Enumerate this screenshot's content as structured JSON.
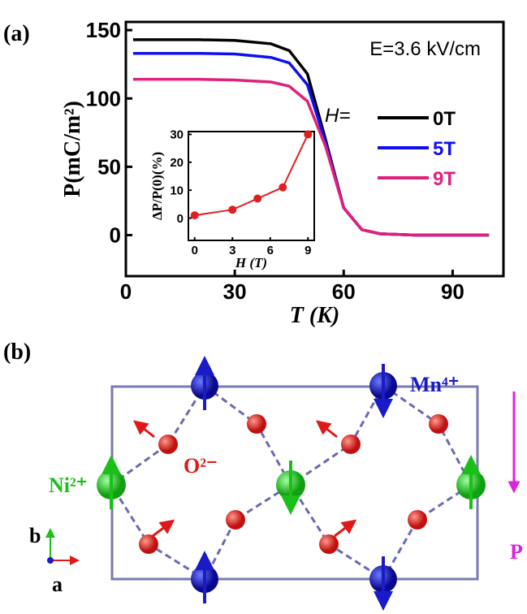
{
  "chart_data": [
    {
      "type": "line",
      "panel_label": "(a)",
      "xlabel": "T (K)",
      "ylabel": "P(mC/m²)",
      "annotation": "E=3.6 kV/cm",
      "legend_title": "H=",
      "legend": "right",
      "x": [
        2,
        10,
        20,
        30,
        40,
        45,
        50,
        55,
        60,
        65,
        70,
        80,
        90,
        100
      ],
      "series": [
        {
          "name": "0T",
          "color": "#000000",
          "values": [
            143,
            143,
            143,
            142.5,
            140,
            135,
            118,
            70,
            20,
            4,
            1,
            0,
            0,
            0
          ]
        },
        {
          "name": "5T",
          "color": "#1010ee",
          "values": [
            133,
            133,
            133,
            132.5,
            130,
            126,
            110,
            68,
            20,
            4,
            1,
            0,
            0,
            0
          ]
        },
        {
          "name": "9T",
          "color": "#e0207a",
          "values": [
            114,
            114,
            114,
            113.5,
            112,
            109,
            98,
            65,
            20,
            4,
            1,
            0,
            0,
            0
          ]
        }
      ],
      "xlim": [
        0,
        104
      ],
      "xticks": [
        0,
        30,
        60,
        90
      ],
      "ylim": [
        -30,
        156
      ],
      "yticks": [
        0,
        50,
        100,
        150
      ]
    },
    {
      "type": "line",
      "xlabel": "H (T)",
      "ylabel": "ΔP/P(0)(%)",
      "x": [
        0,
        3,
        5,
        7,
        9
      ],
      "series": [
        {
          "color": "#e02020",
          "values": [
            1,
            3,
            7,
            11,
            30
          ]
        }
      ],
      "xlim": [
        -0.5,
        9.5
      ],
      "xticks": [
        0,
        3,
        6,
        9
      ],
      "ylim": [
        -8,
        31
      ],
      "yticks": [
        0,
        10,
        20,
        30
      ]
    }
  ],
  "panel_b": {
    "label": "(b)",
    "mn": "Mn⁴⁺",
    "ni": "Ni²⁺",
    "o": "O²⁻",
    "p": "P",
    "axis_b": "b",
    "axis_a": "a"
  }
}
